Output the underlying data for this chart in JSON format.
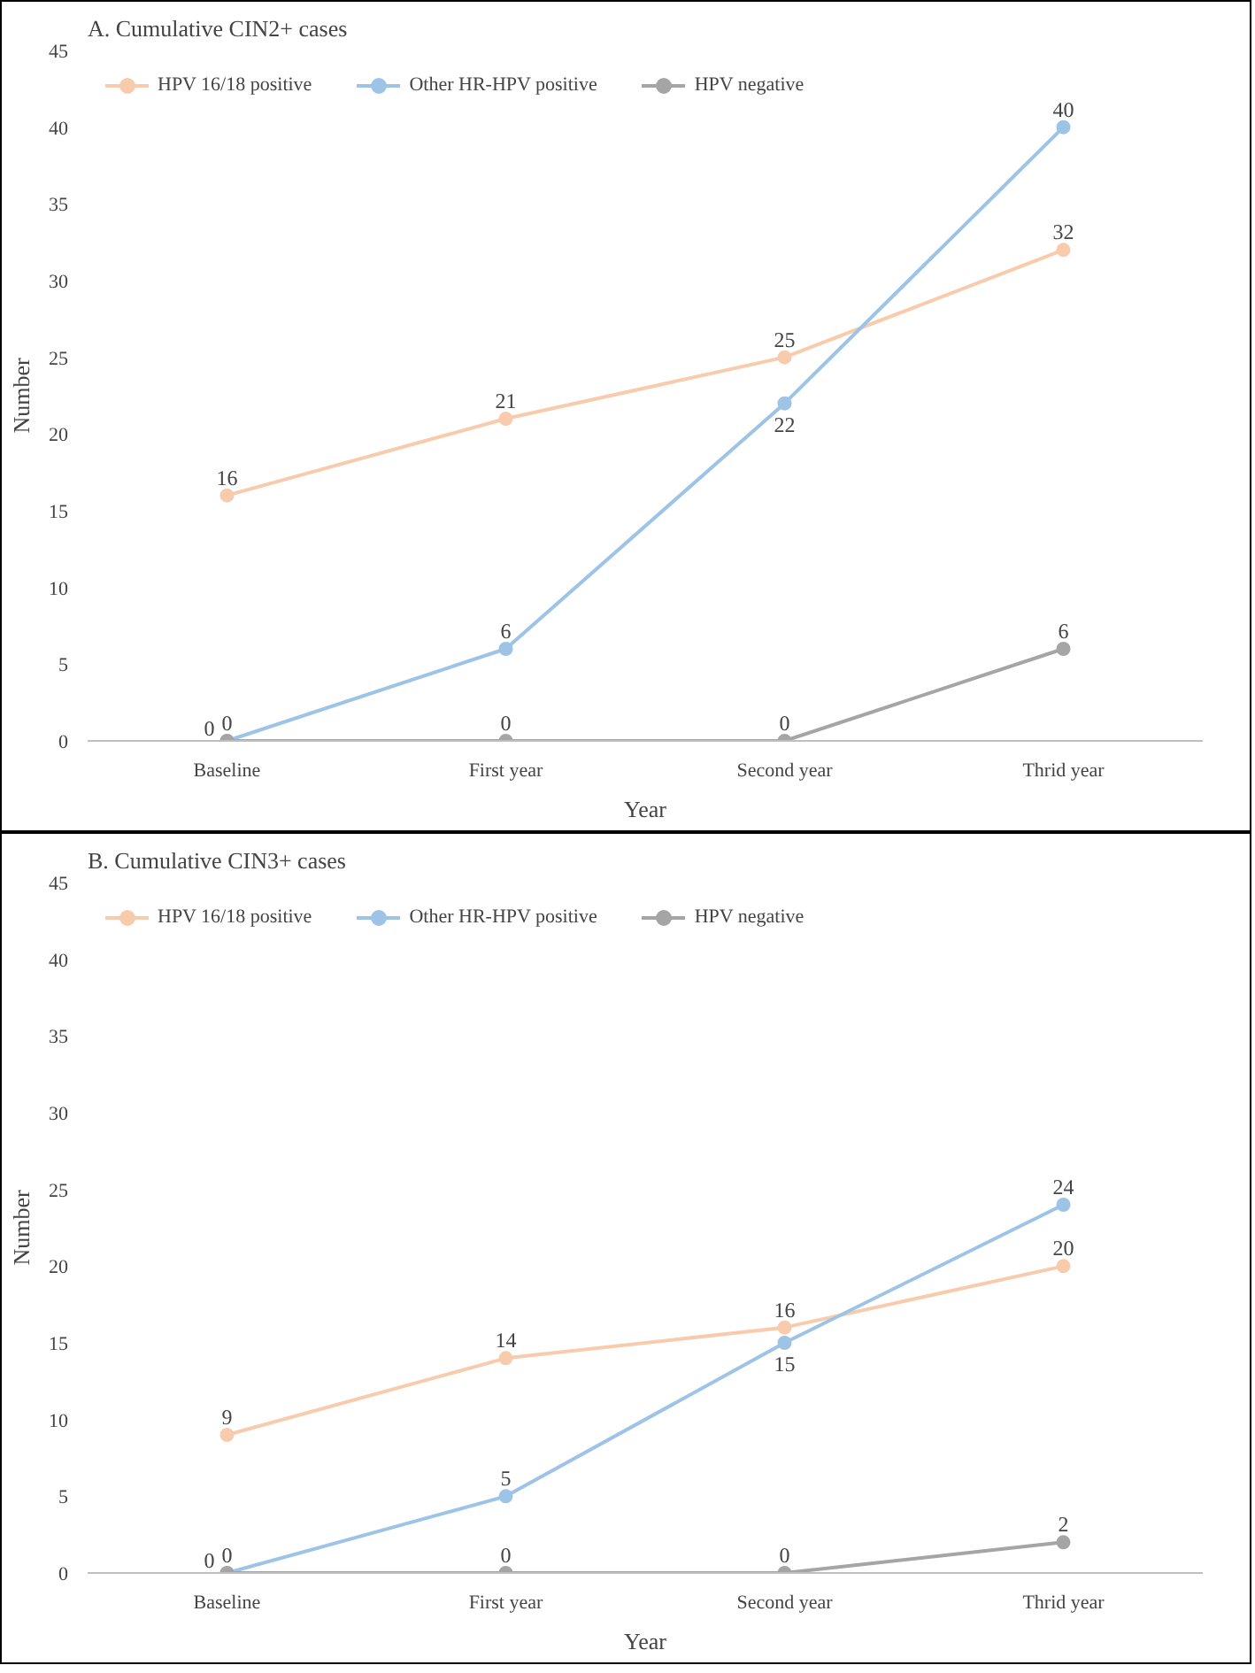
{
  "chart_data": [
    {
      "type": "line",
      "title": "A. Cumulative CIN2+ cases",
      "xlabel": "Year",
      "ylabel": "Number",
      "categories": [
        "Baseline",
        "First year",
        "Second year",
        "Thrid year"
      ],
      "ylim": [
        0,
        45
      ],
      "yticks": [
        0,
        5,
        10,
        15,
        20,
        25,
        30,
        35,
        40,
        45
      ],
      "grid": false,
      "legend": "top left",
      "marker": "circle",
      "data_labels": true,
      "series": [
        {
          "name": "HPV 16/18 positive",
          "color": "#f8cbad",
          "values": [
            16,
            21,
            25,
            32
          ]
        },
        {
          "name": "Other HR-HPV positive",
          "color": "#9dc3e6",
          "values": [
            0,
            6,
            22,
            40
          ]
        },
        {
          "name": "HPV negative",
          "color": "#a5a5a5",
          "values": [
            0,
            0,
            0,
            6
          ]
        }
      ]
    },
    {
      "type": "line",
      "title": "B. Cumulative CIN3+ cases",
      "xlabel": "Year",
      "ylabel": "Number",
      "categories": [
        "Baseline",
        "First year",
        "Second year",
        "Thrid year"
      ],
      "ylim": [
        0,
        45
      ],
      "yticks": [
        0,
        5,
        10,
        15,
        20,
        25,
        30,
        35,
        40,
        45
      ],
      "grid": false,
      "legend": "top left",
      "marker": "circle",
      "data_labels": true,
      "series": [
        {
          "name": "HPV 16/18 positive",
          "color": "#f8cbad",
          "values": [
            9,
            14,
            16,
            20
          ]
        },
        {
          "name": "Other HR-HPV positive",
          "color": "#9dc3e6",
          "values": [
            0,
            5,
            15,
            24
          ]
        },
        {
          "name": "HPV negative",
          "color": "#a5a5a5",
          "values": [
            0,
            0,
            0,
            2
          ]
        }
      ]
    }
  ]
}
